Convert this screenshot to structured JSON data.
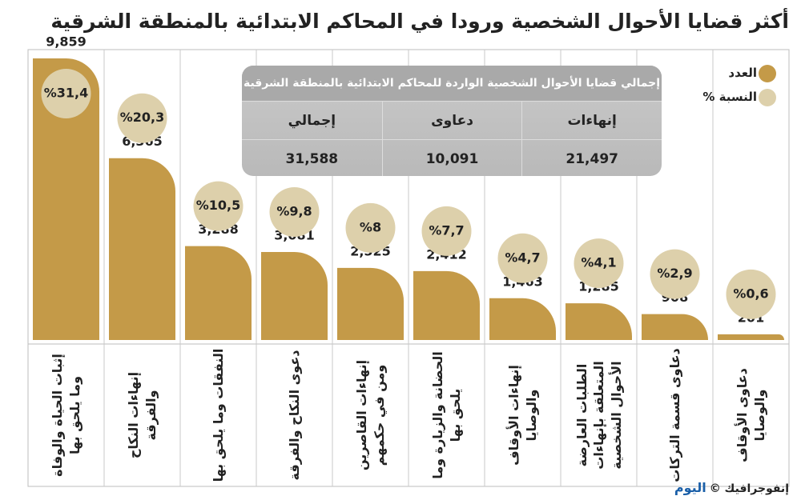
{
  "chart_data": {
    "type": "bar",
    "title": "أكثر قضايا الأحوال الشخصية ورودا في المحاكم الابتدائية بالمنطقة الشرقية",
    "categories": [
      "إثبات الحياة والوفاة وما يلحق بها",
      "إنهاءات النكاح والفرقة",
      "النفقات وما يلحق بها",
      "دعوى النكاح والفرقة",
      "إنهاءات القاصرين ومن في حكمهم",
      "الحضانة والزيارة وما يلحق بها",
      "إنهاءات الأوقاف والوصايا",
      "الطلبات العارضة المتعلقة بإنهاءات الأحوال الشخصية",
      "دعاوى قسمة التركات",
      "دعاوى الأوقاف والوصايا"
    ],
    "series": [
      {
        "name": "العدد",
        "color": "#c49a48",
        "values": [
          9859,
          6365,
          3288,
          3081,
          2525,
          2412,
          1463,
          1285,
          908,
          201
        ],
        "value_labels": [
          "9,859",
          "6,365",
          "3,288",
          "3,081",
          "2,525",
          "2,412",
          "1,463",
          "1,285",
          "908",
          "201"
        ]
      },
      {
        "name": "النسبة %",
        "color": "#ddd0ab",
        "values": [
          31.4,
          20.3,
          10.5,
          9.8,
          8,
          7.7,
          4.7,
          4.1,
          2.9,
          0.6
        ],
        "value_labels": [
          "%31,4",
          "%20,3",
          "%10,5",
          "%9,8",
          "%8",
          "%7,7",
          "%4,7",
          "%4,1",
          "%2,9",
          "%0,6"
        ]
      }
    ]
  },
  "table": {
    "title": "إجمالي قضايا الأحوال الشخصية الواردة للمحاكم الابتدائية بالمنطقة الشرقية",
    "headers": [
      "إنهاءات",
      "دعاوى",
      "إجمالي"
    ],
    "values": [
      "21,497",
      "10,091",
      "31,588"
    ]
  },
  "footer": {
    "credit": "إنفوجرافيك ©",
    "brand": "اليوم"
  }
}
